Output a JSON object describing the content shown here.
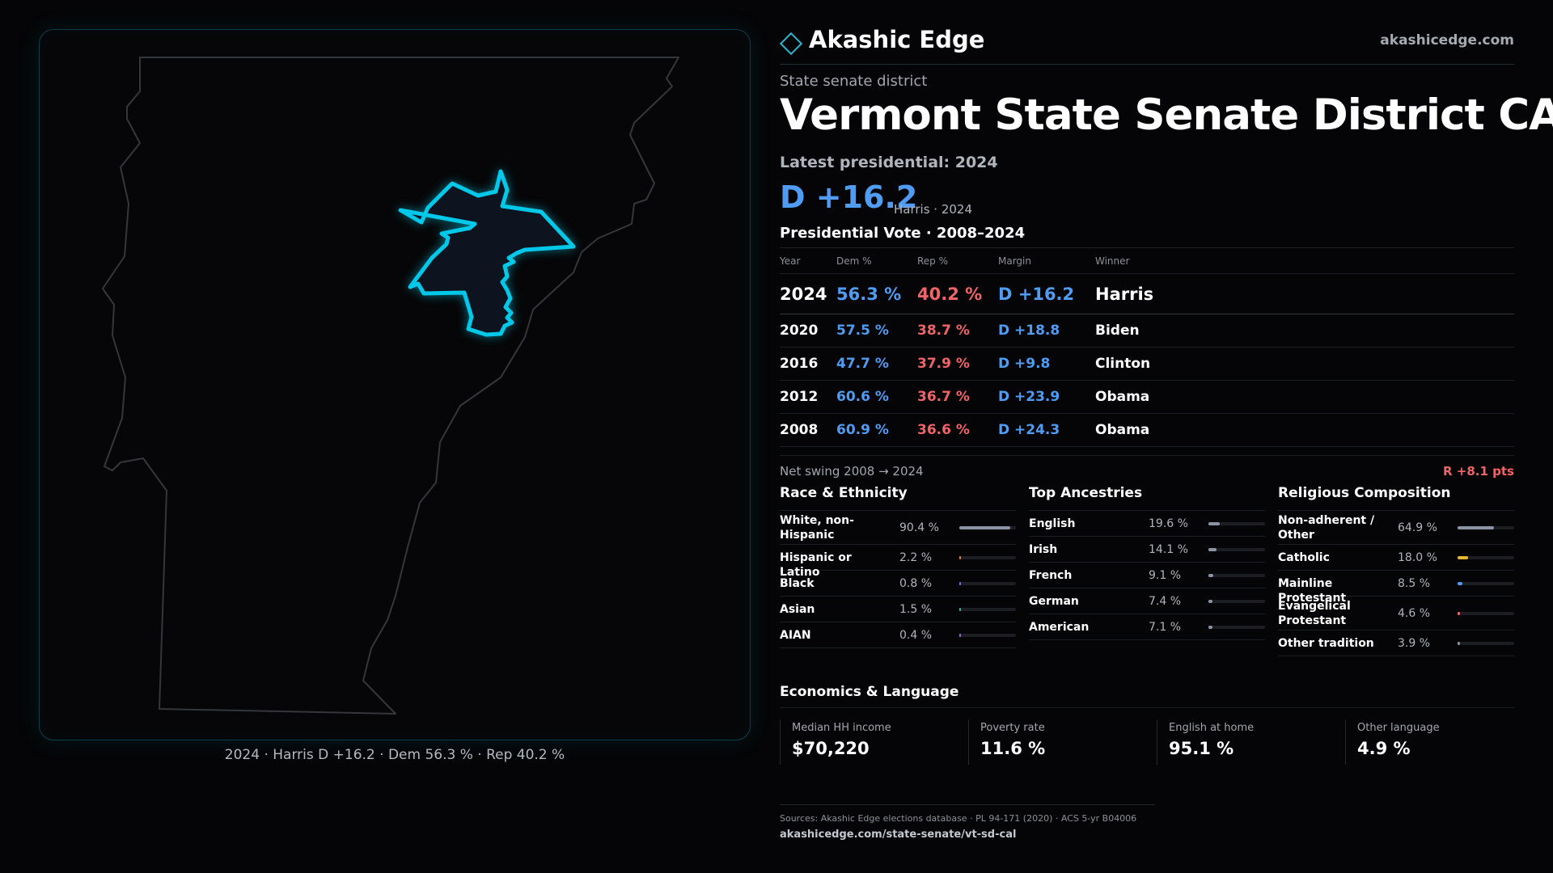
{
  "brand": {
    "name": "Akashic Edge",
    "site": "akashicedge.com",
    "logo_icon": "diamond-outline-icon",
    "accent": "#2bb7cf"
  },
  "header": {
    "eyebrow": "State senate district",
    "title": "Vermont  State Senate District CAL",
    "latest_label": "Latest presidential: 2024",
    "latest_margin": "D +16.2",
    "latest_sub": "Harris · 2024"
  },
  "map": {
    "caption": "2024 · Harris D +16.2 · Dem 56.3 % · Rep 40.2 %",
    "highlight_color": "#00c8e8"
  },
  "presidential": {
    "title": "Presidential Vote · 2008–2024",
    "columns": {
      "year": "Year",
      "dem": "Dem %",
      "rep": "Rep %",
      "margin": "Margin",
      "winner": "Winner"
    },
    "rows": [
      {
        "year": "2024",
        "dem": "56.3 %",
        "rep": "40.2 %",
        "margin": "D +16.2",
        "winner": "Harris"
      },
      {
        "year": "2020",
        "dem": "57.5 %",
        "rep": "38.7 %",
        "margin": "D +18.8",
        "winner": "Biden"
      },
      {
        "year": "2016",
        "dem": "47.7 %",
        "rep": "37.9 %",
        "margin": "D +9.8",
        "winner": "Clinton"
      },
      {
        "year": "2012",
        "dem": "60.6 %",
        "rep": "36.7 %",
        "margin": "D +23.9",
        "winner": "Obama"
      },
      {
        "year": "2008",
        "dem": "60.9 %",
        "rep": "36.6 %",
        "margin": "D +24.3",
        "winner": "Obama"
      }
    ],
    "swing_label": "Net swing 2008 → 2024",
    "swing_value": "R +8.1 pts"
  },
  "race": {
    "title": "Race & Ethnicity",
    "items": [
      {
        "label": "White, non-Hispanic",
        "value": "90.4 %",
        "share": 0.904,
        "color": "#8a94a6"
      },
      {
        "label": "Hispanic or Latino",
        "value": "2.2 %",
        "share": 0.022,
        "color": "#e8804a"
      },
      {
        "label": "Black",
        "value": "0.8 %",
        "share": 0.008,
        "color": "#6a78e8"
      },
      {
        "label": "Asian",
        "value": "1.5 %",
        "share": 0.015,
        "color": "#3cc08a"
      },
      {
        "label": "AIAN",
        "value": "0.4 %",
        "share": 0.004,
        "color": "#a06ad8"
      }
    ]
  },
  "ancestry": {
    "title": "Top Ancestries",
    "items": [
      {
        "label": "English",
        "value": "19.6 %",
        "share": 0.196,
        "color": "#8a94a6"
      },
      {
        "label": "Irish",
        "value": "14.1 %",
        "share": 0.141,
        "color": "#8a94a6"
      },
      {
        "label": "French",
        "value": "9.1 %",
        "share": 0.091,
        "color": "#8a94a6"
      },
      {
        "label": "German",
        "value": "7.4 %",
        "share": 0.074,
        "color": "#8a94a6"
      },
      {
        "label": "American",
        "value": "7.1 %",
        "share": 0.071,
        "color": "#8a94a6"
      }
    ]
  },
  "religion": {
    "title": "Religious Composition",
    "items": [
      {
        "label": "Non-adherent / Other",
        "value": "64.9 %",
        "share": 0.649,
        "color": "#8a94a6"
      },
      {
        "label": "Catholic",
        "value": "18.0 %",
        "share": 0.18,
        "color": "#e8b830"
      },
      {
        "label": "Mainline Protestant",
        "value": "8.5 %",
        "share": 0.085,
        "color": "#4f9cf2"
      },
      {
        "label": "Evangelical Protestant",
        "value": "4.6 %",
        "share": 0.046,
        "color": "#f06468"
      },
      {
        "label": "Other tradition",
        "value": "3.9 %",
        "share": 0.039,
        "color": "#8a94a6"
      }
    ]
  },
  "economics": {
    "title": "Economics & Language",
    "cells": [
      {
        "label": "Median HH income",
        "value": "$70,220"
      },
      {
        "label": "Poverty rate",
        "value": "11.6 %"
      },
      {
        "label": "English at home",
        "value": "95.1 %"
      },
      {
        "label": "Other language",
        "value": "4.9 %"
      }
    ]
  },
  "footer": {
    "sources": "Sources: Akashic Edge elections database · PL 94-171 (2020) · ACS 5-yr B04006",
    "url": "akashicedge.com/state-senate/vt-sd-cal"
  }
}
